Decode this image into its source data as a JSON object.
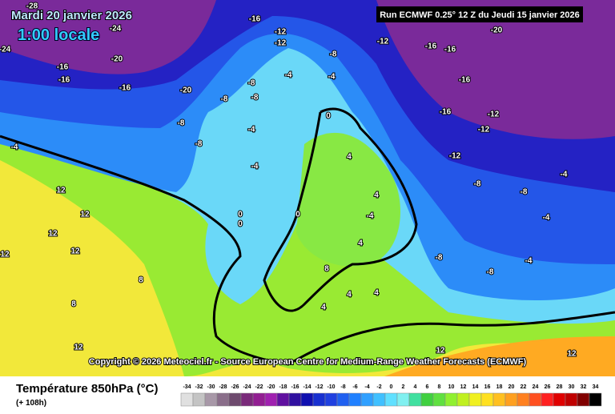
{
  "header": {
    "date": "Mardi 20 janvier 2026",
    "time": "1:00 locale",
    "run": "Run ECMWF 0.25° 12 Z du Jeudi 15 janvier 2026"
  },
  "copyright": "Copyright © 2026 Meteociel.fr - Source European Centre for Medium-Range Weather Forecasts (ECMWF)",
  "footer": {
    "title": "Température 850hPa (°C)",
    "lead": "(+ 108h)"
  },
  "color_scale": {
    "values": [
      -34,
      -32,
      -30,
      -28,
      -26,
      -24,
      -22,
      -20,
      -18,
      -16,
      -14,
      -12,
      -10,
      -8,
      -6,
      -4,
      -2,
      0,
      2,
      4,
      6,
      8,
      10,
      12,
      14,
      16,
      18,
      20,
      22,
      24,
      26,
      28,
      30,
      32,
      34
    ],
    "colors": [
      "#e0e0e0",
      "#c4c4c4",
      "#a898a8",
      "#8a6e8a",
      "#6e4a6e",
      "#7a2a7a",
      "#921e92",
      "#a020b0",
      "#6010a0",
      "#3010a0",
      "#1010b0",
      "#1830d0",
      "#2040e0",
      "#2060f0",
      "#2080ff",
      "#30a0ff",
      "#40c0ff",
      "#60e0ff",
      "#80f0f0",
      "#40e0a0",
      "#40d040",
      "#60e040",
      "#90f030",
      "#c0f020",
      "#f0f020",
      "#ffe020",
      "#ffc020",
      "#ffa020",
      "#ff8020",
      "#ff5020",
      "#ff2020",
      "#e00000",
      "#c00000",
      "#800000",
      "#000000"
    ]
  },
  "map": {
    "labels": [
      "-16",
      "-12",
      "-12",
      "-16",
      "-16",
      "-20",
      "-16",
      "-16",
      "-12",
      "-12",
      "-12",
      "-16",
      "-16",
      "-20",
      "-16",
      "-20",
      "-8",
      "-8",
      "-8",
      "-8",
      "-4",
      "-4",
      "-8",
      "-4",
      "-8",
      "-4",
      "-4",
      "-12",
      "0",
      "4",
      "4",
      "4",
      "0",
      "0",
      "-4",
      "12",
      "12",
      "12",
      "12",
      "12",
      "8",
      "8",
      "12",
      "12",
      "12",
      "-8",
      "-8",
      "-4",
      "-4",
      "-8",
      "-8",
      "-4",
      "-24",
      "-28",
      "-24",
      "0",
      "4",
      "4",
      "8",
      "4"
    ]
  }
}
